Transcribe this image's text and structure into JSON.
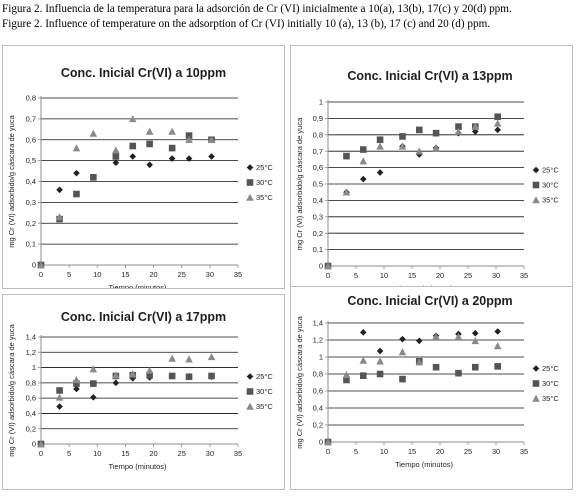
{
  "caption": {
    "spanish": "Figura 2. Influencia de la temperatura para la adsorción de Cr (VI) inicialmente a 10(a), 13(b), 17(c) y 20(d) ppm.",
    "english": "Figure 2. Influence of temperature on the adsorption of Cr (VI) initially 10 (a), 13 (b), 17 (c) and 20 (d) ppm."
  },
  "colors": {
    "s25": "#222222",
    "s30": "#555555",
    "s35": "#8a8a8a",
    "grid": "#111111",
    "axis": "#8c8c8c"
  },
  "chart_data": [
    {
      "type": "scatter",
      "title": "Conc. Inicial Cr(VI) a 10ppm",
      "xlabel": "Tiempo (minutos)",
      "ylabel": "mg Cr (VI) adsorbido/g cáscara de yuca",
      "xlim": [
        0,
        35
      ],
      "ylim": [
        0,
        0.8
      ],
      "xticks": [
        "0",
        "5",
        "10",
        "15",
        "20",
        "25",
        "30",
        "35"
      ],
      "yticks": [
        "0",
        "0,1",
        "0,2",
        "0,3",
        "0,4",
        "0,5",
        "0,6",
        "0,7",
        "0,8"
      ],
      "ystep": 0.1,
      "grid": true,
      "legend": "right",
      "series": [
        {
          "name": "25°C",
          "marker": "diamond",
          "x": [
            0,
            3.3,
            6.3,
            9.3,
            13.3,
            16.3,
            19.3,
            23.3,
            26.3,
            30.3
          ],
          "y": [
            0,
            0.36,
            0.44,
            0.42,
            0.49,
            0.52,
            0.48,
            0.51,
            0.51,
            0.52
          ]
        },
        {
          "name": "30°C",
          "marker": "square",
          "x": [
            0,
            3.3,
            6.3,
            9.3,
            13.3,
            16.3,
            19.3,
            23.3,
            26.3,
            30.3
          ],
          "y": [
            0,
            0.22,
            0.34,
            0.42,
            0.52,
            0.57,
            0.58,
            0.56,
            0.62,
            0.6
          ]
        },
        {
          "name": "35°C",
          "marker": "triangle",
          "x": [
            0,
            3.3,
            6.3,
            9.3,
            13.3,
            16.3,
            19.3,
            23.3,
            26.3,
            30.3
          ],
          "y": [
            0,
            0.23,
            0.56,
            0.63,
            0.55,
            0.7,
            0.64,
            0.64,
            0.6,
            0.6
          ]
        }
      ]
    },
    {
      "type": "scatter",
      "title": "Conc. Inicial Cr(VI) a 13ppm",
      "xlabel": "Tiempo (minutos)",
      "ylabel": "mg Cr (VI) adsorbido/g cáscara de yuca",
      "xlim": [
        0,
        35
      ],
      "ylim": [
        0,
        1
      ],
      "xticks": [
        "0",
        "5",
        "10",
        "15",
        "20",
        "25",
        "30",
        "35"
      ],
      "yticks": [
        "0",
        "0,1",
        "0,2",
        "0,3",
        "0,4",
        "0,5",
        "0,6",
        "0,7",
        "0,8",
        "0,9",
        "1"
      ],
      "ystep": 0.1,
      "grid": true,
      "legend": "right",
      "series": [
        {
          "name": "25°C",
          "marker": "diamond",
          "x": [
            0,
            3.3,
            6.3,
            9.3,
            13.3,
            16.3,
            19.3,
            23.3,
            26.3,
            30.3
          ],
          "y": [
            0,
            0.45,
            0.53,
            0.57,
            0.73,
            0.68,
            0.72,
            0.81,
            0.82,
            0.83
          ]
        },
        {
          "name": "30°C",
          "marker": "square",
          "x": [
            0,
            3.3,
            6.3,
            9.3,
            13.3,
            16.3,
            19.3,
            23.3,
            26.3,
            30.3
          ],
          "y": [
            0,
            0.67,
            0.71,
            0.77,
            0.79,
            0.83,
            0.81,
            0.85,
            0.85,
            0.91
          ]
        },
        {
          "name": "35°C",
          "marker": "triangle",
          "x": [
            0,
            3.3,
            6.3,
            9.3,
            13.3,
            16.3,
            19.3,
            23.3,
            26.3,
            30.3
          ],
          "y": [
            0,
            0.45,
            0.64,
            0.73,
            0.73,
            0.7,
            0.72,
            0.82,
            0.85,
            0.87
          ]
        }
      ]
    },
    {
      "type": "scatter",
      "title": "Conc. Inicial Cr(VI) a 17ppm",
      "xlabel": "Tiempo (minutos)",
      "ylabel": "mg Cr (VI) adsorbido/g cáscara de yuca",
      "xlim": [
        0,
        35
      ],
      "ylim": [
        0,
        1.4
      ],
      "xticks": [
        "0",
        "5",
        "10",
        "15",
        "20",
        "25",
        "30",
        "35"
      ],
      "yticks": [
        "0",
        "0,2",
        "0,4",
        "0,6",
        "0,8",
        "1",
        "1,2",
        "1,4"
      ],
      "ystep": 0.2,
      "grid": true,
      "legend": "right",
      "series": [
        {
          "name": "25°C",
          "marker": "diamond",
          "x": [
            0,
            3.3,
            6.3,
            9.3,
            13.3,
            16.3,
            19.3,
            23.3,
            26.3,
            30.3
          ],
          "y": [
            0,
            0.49,
            0.72,
            0.61,
            0.8,
            0.86,
            0.87,
            0.89,
            0.88,
            0.88
          ]
        },
        {
          "name": "30°C",
          "marker": "square",
          "x": [
            0,
            3.3,
            6.3,
            9.3,
            13.3,
            16.3,
            19.3,
            23.3,
            26.3,
            30.3
          ],
          "y": [
            0,
            0.7,
            0.79,
            0.79,
            0.89,
            0.9,
            0.9,
            0.89,
            0.88,
            0.89
          ]
        },
        {
          "name": "35°C",
          "marker": "triangle",
          "x": [
            0,
            3.3,
            6.3,
            9.3,
            13.3,
            16.3,
            19.3,
            23.3,
            26.3,
            30.3
          ],
          "y": [
            0,
            0.61,
            0.84,
            0.98,
            0.9,
            0.92,
            0.96,
            1.12,
            1.11,
            1.14
          ]
        }
      ]
    },
    {
      "type": "scatter",
      "title": "Conc. Inicial Cr(VI) a 20ppm",
      "xlabel": "Tiempo (minutos)",
      "ylabel": "mg Cr (VI) adsorbido/g cáscara de yuca",
      "xlim": [
        0,
        35
      ],
      "ylim": [
        0,
        1.4
      ],
      "xticks": [
        "0",
        "5",
        "10",
        "15",
        "20",
        "25",
        "30",
        "35"
      ],
      "yticks": [
        "0",
        "0,2",
        "0,4",
        "0,6",
        "0,8",
        "1",
        "1,2",
        "1,4"
      ],
      "ystep": 0.2,
      "grid": true,
      "legend": "right",
      "series": [
        {
          "name": "25°C",
          "marker": "diamond",
          "x": [
            0,
            3.3,
            6.3,
            9.3,
            13.3,
            16.3,
            19.3,
            23.3,
            26.3,
            30.3
          ],
          "y": [
            0,
            0.76,
            1.29,
            1.07,
            1.21,
            1.19,
            1.25,
            1.27,
            1.28,
            1.3
          ]
        },
        {
          "name": "30°C",
          "marker": "square",
          "x": [
            0,
            3.3,
            6.3,
            9.3,
            13.3,
            16.3,
            19.3,
            23.3,
            26.3,
            30.3
          ],
          "y": [
            0,
            0.73,
            0.78,
            0.8,
            0.74,
            0.95,
            0.88,
            0.81,
            0.88,
            0.89
          ]
        },
        {
          "name": "35°C",
          "marker": "triangle",
          "x": [
            0,
            3.3,
            6.3,
            9.3,
            13.3,
            16.3,
            19.3,
            23.3,
            26.3,
            30.3
          ],
          "y": [
            0,
            0.79,
            0.96,
            0.95,
            1.06,
            0.94,
            1.24,
            1.24,
            1.19,
            1.13
          ]
        }
      ]
    }
  ]
}
